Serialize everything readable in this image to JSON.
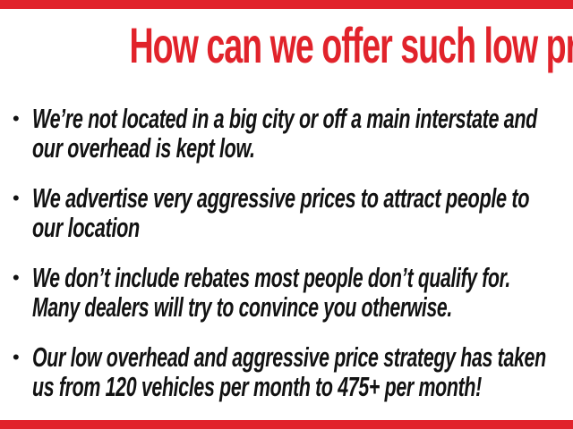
{
  "slide": {
    "title": "How can we offer such low prices?",
    "bullet_glyph": "•",
    "bullets": [
      {
        "lines": [
          "We’re not located in a big city or off a main interstate and",
          "our overhead is kept low."
        ]
      },
      {
        "lines": [
          "We advertise very aggressive prices to attract people to",
          "our location"
        ]
      },
      {
        "lines": [
          "We don’t include rebates most people don’t qualify for.",
          "Many dealers will try to convince you otherwise."
        ]
      },
      {
        "lines": [
          "Our low overhead and aggressive price strategy has taken",
          "us from 120 vehicles per month to 475+ per month!"
        ]
      }
    ],
    "colors": {
      "accent_red": "#e1232b",
      "text_black": "#121212",
      "background": "#ffffff"
    }
  }
}
